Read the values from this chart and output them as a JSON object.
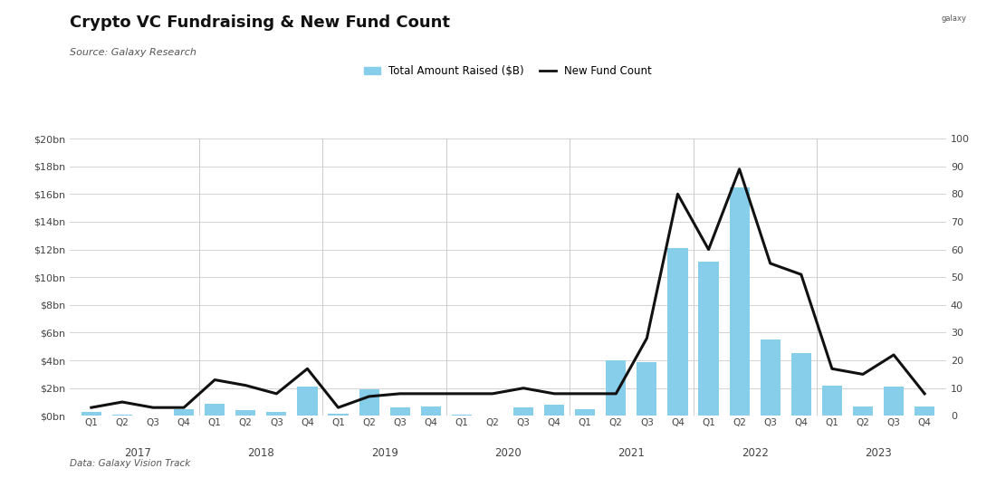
{
  "title": "Crypto VC Fundraising & New Fund Count",
  "source": "Source: Galaxy Research",
  "footnote": "Data: Galaxy Vision Track",
  "bar_color": "#87CEEB",
  "line_color": "#111111",
  "background_color": "#ffffff",
  "bar_label": "Total Amount Raised ($B)",
  "line_label": "New Fund Count",
  "quarters": [
    "Q1",
    "Q2",
    "Q3",
    "Q4",
    "Q1",
    "Q2",
    "Q3",
    "Q4",
    "Q1",
    "Q2",
    "Q3",
    "Q4",
    "Q1",
    "Q2",
    "Q3",
    "Q4",
    "Q1",
    "Q2",
    "Q3",
    "Q4",
    "Q1",
    "Q2",
    "Q3",
    "Q4",
    "Q1",
    "Q2",
    "Q3",
    "Q4"
  ],
  "years": [
    "2017",
    "2018",
    "2019",
    "2020",
    "2021",
    "2022",
    "2023"
  ],
  "year_mid_positions": [
    1.5,
    5.5,
    9.5,
    13.5,
    17.5,
    21.5,
    25.5
  ],
  "year_boundaries": [
    3.5,
    7.5,
    11.5,
    15.5,
    19.5,
    23.5
  ],
  "amount_raised_bn": [
    0.3,
    0.1,
    0.05,
    0.5,
    0.9,
    0.4,
    0.3,
    2.1,
    0.15,
    1.9,
    0.6,
    0.7,
    0.1,
    0.05,
    0.6,
    0.8,
    0.5,
    4.0,
    3.9,
    12.1,
    11.1,
    16.5,
    5.5,
    4.5,
    2.2,
    0.7,
    2.1,
    0.7
  ],
  "fund_count": [
    3,
    5,
    3,
    3,
    13,
    11,
    8,
    17,
    3,
    7,
    8,
    8,
    8,
    8,
    10,
    8,
    8,
    8,
    28,
    80,
    60,
    89,
    55,
    51,
    17,
    15,
    22,
    8
  ],
  "ylim_left": [
    0,
    20
  ],
  "ylim_right": [
    0,
    100
  ],
  "yticks_left": [
    0,
    2,
    4,
    6,
    8,
    10,
    12,
    14,
    16,
    18,
    20
  ],
  "ytick_labels_left": [
    "$0bn",
    "$2bn",
    "$4bn",
    "$6bn",
    "$8bn",
    "$10bn",
    "$12bn",
    "$14bn",
    "$16bn",
    "$18bn",
    "$20bn"
  ],
  "yticks_right": [
    0,
    10,
    20,
    30,
    40,
    50,
    60,
    70,
    80,
    90,
    100
  ]
}
